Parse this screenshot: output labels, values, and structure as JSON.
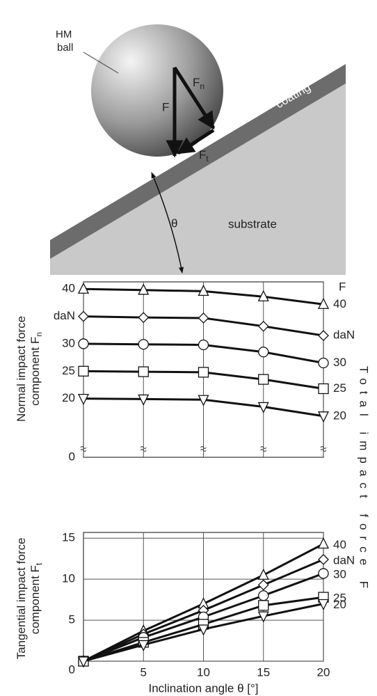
{
  "diagram": {
    "hm": "HM",
    "ball": "ball",
    "f": "F",
    "fn": "F",
    "fn_sub": "n",
    "ft": "F",
    "ft_sub": "t",
    "coating": "coating",
    "theta": "θ",
    "substrate": "substrate"
  },
  "shared_ylabel": "Total impact force F",
  "chart_data": [
    {
      "type": "line",
      "ylabel": [
        "Normal impact force",
        "component F"
      ],
      "ylabel_sub": "n",
      "legend_title": "F",
      "x": [
        0,
        5,
        10,
        15,
        20
      ],
      "xlim": [
        0,
        20
      ],
      "xticks": [
        0,
        5,
        10,
        15,
        20
      ],
      "xtick_labels": false,
      "ylim": [
        0,
        41.3
      ],
      "ybreak": [
        0,
        15
      ],
      "yticks": [
        0,
        20,
        25,
        30,
        {
          "value": 35,
          "label": "daN"
        },
        40
      ],
      "grid": "x",
      "series": [
        {
          "name": "40",
          "marker": "triangle-up",
          "color": "#111",
          "values": [
            40,
            39.8,
            39.6,
            38.6,
            37.2
          ]
        },
        {
          "name": "daN",
          "marker": "diamond",
          "color": "#111",
          "values": [
            35,
            34.8,
            34.7,
            33.2,
            31.5
          ]
        },
        {
          "name": "30",
          "marker": "circle",
          "color": "#111",
          "values": [
            30,
            29.9,
            29.8,
            28.5,
            26.5
          ]
        },
        {
          "name": "25",
          "marker": "square",
          "color": "#111",
          "values": [
            25,
            24.9,
            24.8,
            23.5,
            21.8
          ]
        },
        {
          "name": "20",
          "marker": "triangle-down",
          "color": "#111",
          "values": [
            20,
            19.9,
            19.8,
            18.5,
            16.8
          ]
        }
      ]
    },
    {
      "type": "line",
      "ylabel": [
        "Tangential impact force",
        "component F"
      ],
      "ylabel_sub": "t",
      "xlabel": "Inclination angle θ [°]",
      "x": [
        0,
        5,
        10,
        15,
        20
      ],
      "xlim": [
        0,
        20
      ],
      "xticks": [
        5,
        10,
        15,
        20
      ],
      "xtick_labels": true,
      "ylim": [
        0,
        15.7
      ],
      "yticks": [
        0,
        5,
        10,
        15
      ],
      "grid": "both",
      "series": [
        {
          "name": "40",
          "marker": "triangle-up",
          "color": "#111",
          "values": [
            0,
            3.7,
            7.0,
            10.5,
            14.3
          ]
        },
        {
          "name": "daN",
          "marker": "diamond",
          "color": "#111",
          "values": [
            0,
            3.3,
            6.2,
            9.3,
            12.4
          ]
        },
        {
          "name": "30",
          "marker": "circle",
          "color": "#111",
          "values": [
            0,
            2.9,
            5.4,
            8.0,
            10.7
          ]
        },
        {
          "name": "25",
          "marker": "square",
          "color": "#111",
          "values": [
            0,
            2.3,
            4.5,
            6.8,
            7.8
          ]
        },
        {
          "name": "20",
          "marker": "triangle-down",
          "color": "#111",
          "values": [
            0,
            2.0,
            3.9,
            5.5,
            7.0
          ]
        }
      ]
    }
  ]
}
